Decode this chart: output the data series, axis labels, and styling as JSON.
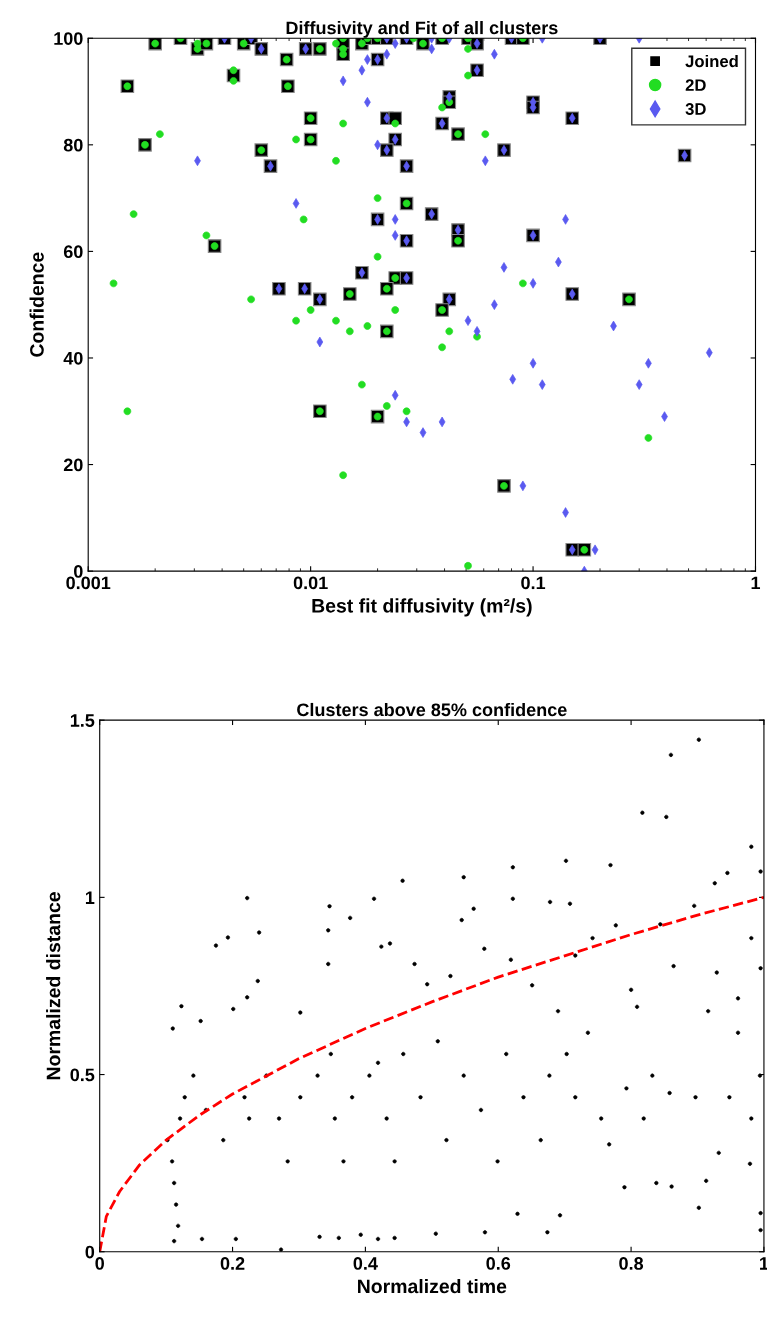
{
  "chart_data": [
    {
      "type": "scatter",
      "title": "Diffusivity and Fit of all clusters",
      "xlabel": "Best fit diffusivity (m²/s)",
      "ylabel": "Confidence",
      "log": "x",
      "xlim": [
        0.001,
        1
      ],
      "ylim": [
        0,
        100
      ],
      "xticks": [
        0.001,
        0.01,
        0.1,
        1
      ],
      "yticks": [
        0,
        20,
        40,
        60,
        80,
        100
      ],
      "legend": "top right",
      "grid": false,
      "series": [
        {
          "name": "Joined",
          "color": "#000000",
          "marker": "square",
          "x": [
            0.002,
            0.0026,
            0.0031,
            0.0034,
            0.0041,
            0.005,
            0.0054,
            0.006,
            0.0078,
            0.0045,
            0.0015,
            0.0079,
            0.0095,
            0.011,
            0.014,
            0.014,
            0.017,
            0.018,
            0.02,
            0.02,
            0.022,
            0.027,
            0.01,
            0.01,
            0.022,
            0.024,
            0.024,
            0.022,
            0.027,
            0.0018,
            0.006,
            0.0066,
            0.027,
            0.02,
            0.027,
            0.0037,
            0.017,
            0.024,
            0.027,
            0.0072,
            0.0094,
            0.011,
            0.015,
            0.022,
            0.032,
            0.039,
            0.051,
            0.056,
            0.08,
            0.09,
            0.2,
            0.056,
            0.042,
            0.042,
            0.1,
            0.1,
            0.15,
            0.039,
            0.046,
            0.074,
            0.48,
            0.035,
            0.046,
            0.046,
            0.1,
            0.15,
            0.27,
            0.042,
            0.039,
            0.022,
            0.011,
            0.02,
            0.074,
            0.15,
            0.17
          ],
          "values": [
            99,
            100,
            98,
            99,
            100,
            99,
            100,
            98,
            96,
            93,
            91,
            91,
            98,
            98,
            99,
            97,
            99,
            100,
            100,
            96,
            100,
            100,
            85,
            81,
            85,
            85,
            81,
            79,
            76,
            80,
            79,
            76,
            69,
            66,
            62,
            61,
            56,
            55,
            55,
            53,
            53,
            51,
            52,
            53,
            99,
            100,
            100,
            99,
            100,
            100,
            100,
            94,
            89,
            88,
            88,
            87,
            85,
            84,
            82,
            79,
            78,
            67,
            64,
            62,
            63,
            52,
            51,
            51,
            49,
            45,
            30,
            29,
            16,
            4,
            4
          ]
        },
        {
          "name": "2D",
          "color": "#22dd22",
          "marker": "circle",
          "x": [
            0.002,
            0.0026,
            0.0031,
            0.0031,
            0.0034,
            0.005,
            0.0078,
            0.0045,
            0.0045,
            0.0015,
            0.0079,
            0.011,
            0.013,
            0.014,
            0.014,
            0.014,
            0.017,
            0.018,
            0.02,
            0.01,
            0.01,
            0.024,
            0.0018,
            0.006,
            0.027,
            0.0037,
            0.024,
            0.015,
            0.022,
            0.0021,
            0.014,
            0.0086,
            0.013,
            0.02,
            0.0093,
            0.0016,
            0.0034,
            0.02,
            0.0013,
            0.0054,
            0.01,
            0.024,
            0.032,
            0.039,
            0.051,
            0.09,
            0.042,
            0.046,
            0.046,
            0.27,
            0.039,
            0.029,
            0.051,
            0.051,
            0.039,
            0.061,
            0.09,
            0.022,
            0.011,
            0.02,
            0.0086,
            0.013,
            0.015,
            0.018,
            0.017,
            0.022,
            0.027,
            0.0015,
            0.014,
            0.042,
            0.039,
            0.056,
            0.33,
            0.051,
            0.074,
            0.17
          ],
          "values": [
            99,
            100,
            98,
            99,
            99,
            99,
            96,
            94,
            92,
            91,
            91,
            98,
            99,
            100,
            98,
            97,
            99,
            100,
            100,
            85,
            81,
            84,
            80,
            79,
            69,
            61,
            55,
            52,
            53,
            82,
            84,
            81,
            77,
            70,
            66,
            67,
            63,
            59,
            54,
            51,
            49,
            49,
            99,
            100,
            100,
            100,
            88,
            82,
            62,
            51,
            49,
            100,
            98,
            93,
            87,
            82,
            54,
            45,
            30,
            29,
            47,
            47,
            45,
            46,
            35,
            31,
            30,
            30,
            18,
            45,
            42,
            44,
            25,
            1,
            16,
            4
          ]
        },
        {
          "name": "3D",
          "color": "#5a5af0",
          "marker": "diamond",
          "x": [
            0.0041,
            0.0054,
            0.006,
            0.0095,
            0.02,
            0.022,
            0.027,
            0.022,
            0.024,
            0.022,
            0.027,
            0.0066,
            0.02,
            0.027,
            0.017,
            0.027,
            0.0072,
            0.0094,
            0.011,
            0.024,
            0.022,
            0.018,
            0.017,
            0.014,
            0.018,
            0.0031,
            0.02,
            0.0086,
            0.024,
            0.024,
            0.056,
            0.08,
            0.2,
            0.056,
            0.042,
            0.1,
            0.1,
            0.15,
            0.039,
            0.074,
            0.48,
            0.035,
            0.046,
            0.1,
            0.15,
            0.042,
            0.035,
            0.042,
            0.11,
            0.3,
            0.035,
            0.067,
            0.061,
            0.14,
            0.074,
            0.13,
            0.1,
            0.067,
            0.011,
            0.024,
            0.027,
            0.032,
            0.039,
            0.051,
            0.056,
            0.081,
            0.1,
            0.11,
            0.23,
            0.33,
            0.3,
            0.39,
            0.62,
            0.09,
            0.14,
            0.15,
            0.19,
            0.17
          ],
          "values": [
            100,
            100,
            98,
            98,
            96,
            100,
            100,
            85,
            81,
            79,
            76,
            76,
            66,
            62,
            56,
            55,
            53,
            53,
            51,
            99,
            97,
            96,
            94,
            92,
            88,
            77,
            80,
            69,
            66,
            63,
            99,
            100,
            100,
            94,
            89,
            88,
            87,
            85,
            84,
            79,
            78,
            67,
            64,
            63,
            52,
            51,
            100,
            100,
            100,
            100,
            98,
            97,
            77,
            66,
            57,
            58,
            54,
            50,
            43,
            33,
            28,
            26,
            28,
            47,
            45,
            36,
            39,
            35,
            46,
            39,
            35,
            29,
            41,
            16,
            11,
            4,
            4,
            0
          ]
        }
      ]
    },
    {
      "type": "scatter",
      "title": "Clusters above 85% confidence",
      "xlabel": "Normalized time",
      "ylabel": "Normalized distance",
      "xlim": [
        0,
        1
      ],
      "ylim": [
        0,
        1.5
      ],
      "xticks": [
        0,
        0.2,
        0.4,
        0.6,
        0.8,
        1
      ],
      "yticks": [
        0,
        0.5,
        1,
        1.5
      ],
      "grid": false,
      "series": [
        {
          "color": "#000000",
          "marker": "circle",
          "x": [
            0.902,
            0.86,
            0.817,
            0.853,
            0.981,
            0.622,
            0.702,
            0.769,
            0.456,
            0.548,
            0.945,
            0.926,
            0.222,
            0.413,
            0.346,
            0.622,
            0.678,
            0.708,
            0.377,
            0.563,
            0.545,
            0.895,
            0.193,
            0.175,
            0.24,
            0.844,
            0.777,
            0.995,
            0.123,
            0.11,
            0.152,
            0.201,
            0.222,
            0.238,
            0.302,
            0.344,
            0.344,
            0.424,
            0.437,
            0.474,
            0.493,
            0.528,
            0.579,
            0.619,
            0.651,
            0.716,
            0.742,
            0.8,
            0.809,
            0.864,
            0.929,
            0.961,
            0.981,
            0.995,
            0.102,
            0.109,
            0.112,
            0.115,
            0.118,
            0.121,
            0.128,
            0.141,
            0.16,
            0.186,
            0.218,
            0.225,
            0.251,
            0.27,
            0.283,
            0.302,
            0.328,
            0.348,
            0.354,
            0.367,
            0.38,
            0.406,
            0.419,
            0.432,
            0.444,
            0.457,
            0.483,
            0.509,
            0.522,
            0.548,
            0.574,
            0.599,
            0.612,
            0.638,
            0.664,
            0.677,
            0.69,
            0.703,
            0.716,
            0.735,
            0.755,
            0.767,
            0.793,
            0.819,
            0.832,
            0.858,
            0.897,
            0.916,
            0.948,
            0.961,
            0.981,
            0.994,
            0.112,
            0.154,
            0.205,
            0.273,
            0.331,
            0.36,
            0.393,
            0.419,
            0.444,
            0.506,
            0.58,
            0.629,
            0.674,
            0.693,
            0.79,
            0.838,
            0.861,
            0.902,
            0.913,
            0.932,
            0.979,
            0.995,
            0.995
          ],
          "values": [
            1.445,
            1.402,
            1.239,
            1.227,
            1.143,
            1.085,
            1.103,
            1.091,
            1.047,
            1.057,
            1.069,
            1.04,
            0.998,
            0.996,
            0.975,
            0.996,
            0.987,
            0.982,
            0.942,
            0.968,
            0.936,
            0.976,
            0.887,
            0.864,
            0.901,
            0.924,
            0.921,
            1.073,
            0.693,
            0.63,
            0.651,
            0.685,
            0.718,
            0.764,
            0.675,
            0.907,
            0.812,
            0.861,
            0.87,
            0.812,
            0.755,
            0.778,
            0.855,
            0.824,
            0.752,
            0.836,
            0.885,
            0.739,
            0.691,
            0.806,
            0.788,
            0.715,
            0.885,
            0.8,
            0.315,
            0.255,
            0.194,
            0.133,
            0.073,
            0.376,
            0.436,
            0.497,
            0.4,
            0.315,
            0.436,
            0.376,
            0.497,
            0.376,
            0.255,
            0.436,
            0.497,
            0.558,
            0.376,
            0.255,
            0.436,
            0.497,
            0.533,
            0.376,
            0.255,
            0.558,
            0.436,
            0.594,
            0.315,
            0.497,
            0.4,
            0.255,
            0.558,
            0.436,
            0.315,
            0.497,
            0.679,
            0.558,
            0.436,
            0.618,
            0.376,
            0.303,
            0.461,
            0.376,
            0.497,
            0.448,
            0.436,
            0.679,
            0.436,
            0.618,
            0.376,
            0.497,
            0.03,
            0.036,
            0.036,
            0.006,
            0.042,
            0.039,
            0.048,
            0.036,
            0.039,
            0.051,
            0.055,
            0.107,
            0.055,
            0.103,
            0.182,
            0.194,
            0.184,
            0.124,
            0.2,
            0.279,
            0.248,
            0.109,
            0.061
          ]
        },
        {
          "type": "line",
          "color": "#ff0000",
          "line_style": "dashed",
          "marker": "none",
          "x": [
            0,
            0.01,
            0.03,
            0.06,
            0.1,
            0.15,
            0.2,
            0.3,
            0.4,
            0.5,
            0.6,
            0.7,
            0.8,
            0.9,
            1
          ],
          "values": [
            0,
            0.1,
            0.17,
            0.245,
            0.315,
            0.385,
            0.445,
            0.545,
            0.63,
            0.705,
            0.775,
            0.835,
            0.895,
            0.95,
            1
          ]
        }
      ]
    }
  ]
}
